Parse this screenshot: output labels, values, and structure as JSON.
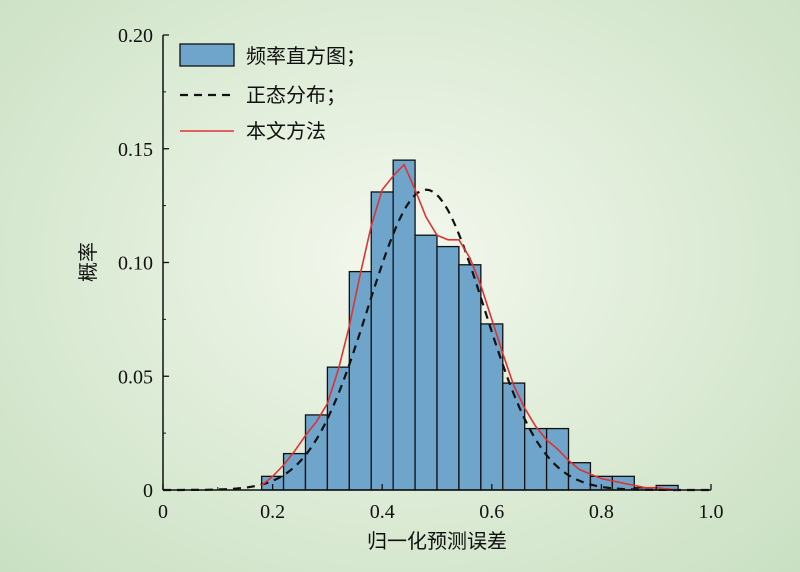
{
  "chart_data": {
    "type": "bar",
    "xlabel": "归一化预测误差",
    "ylabel": "概率",
    "xlim": [
      0,
      1.0
    ],
    "ylim": [
      0,
      0.2
    ],
    "xticks": [
      "0",
      "0.2",
      "0.4",
      "0.6",
      "0.8",
      "1.0"
    ],
    "yticks": [
      "0",
      "0.05",
      "0.10",
      "0.15",
      "0.20"
    ],
    "legend_position": "top-left",
    "bin_width": 0.04,
    "histogram": {
      "name": "频率直方图；",
      "color": "#6fa5cb",
      "bin_starts": [
        0.18,
        0.22,
        0.26,
        0.3,
        0.34,
        0.38,
        0.42,
        0.46,
        0.5,
        0.54,
        0.58,
        0.62,
        0.66,
        0.7,
        0.74,
        0.78,
        0.82,
        0.86,
        0.9
      ],
      "values": [
        0.006,
        0.016,
        0.033,
        0.054,
        0.096,
        0.131,
        0.145,
        0.112,
        0.107,
        0.099,
        0.073,
        0.047,
        0.027,
        0.027,
        0.012,
        0.006,
        0.006,
        0.001,
        0.002
      ]
    },
    "normal": {
      "name": "正态分布；",
      "color": "#111111",
      "mean": 0.48,
      "peak": 0.132,
      "sd": 0.106
    },
    "method": {
      "name": "本文方法",
      "color": "#dd3333",
      "x": [
        0.18,
        0.2,
        0.22,
        0.24,
        0.26,
        0.28,
        0.3,
        0.32,
        0.34,
        0.36,
        0.38,
        0.4,
        0.42,
        0.44,
        0.46,
        0.48,
        0.5,
        0.52,
        0.54,
        0.56,
        0.58,
        0.6,
        0.62,
        0.64,
        0.66,
        0.68,
        0.7,
        0.72,
        0.74,
        0.76,
        0.78,
        0.8,
        0.82,
        0.84,
        0.86,
        0.88,
        0.9,
        0.92,
        0.94
      ],
      "y": [
        0.002,
        0.006,
        0.011,
        0.017,
        0.024,
        0.03,
        0.038,
        0.053,
        0.072,
        0.095,
        0.116,
        0.132,
        0.138,
        0.143,
        0.132,
        0.12,
        0.112,
        0.11,
        0.11,
        0.102,
        0.09,
        0.075,
        0.06,
        0.046,
        0.036,
        0.028,
        0.022,
        0.018,
        0.013,
        0.009,
        0.007,
        0.005,
        0.004,
        0.003,
        0.002,
        0.001,
        0.001,
        0.0005,
        0
      ]
    }
  }
}
